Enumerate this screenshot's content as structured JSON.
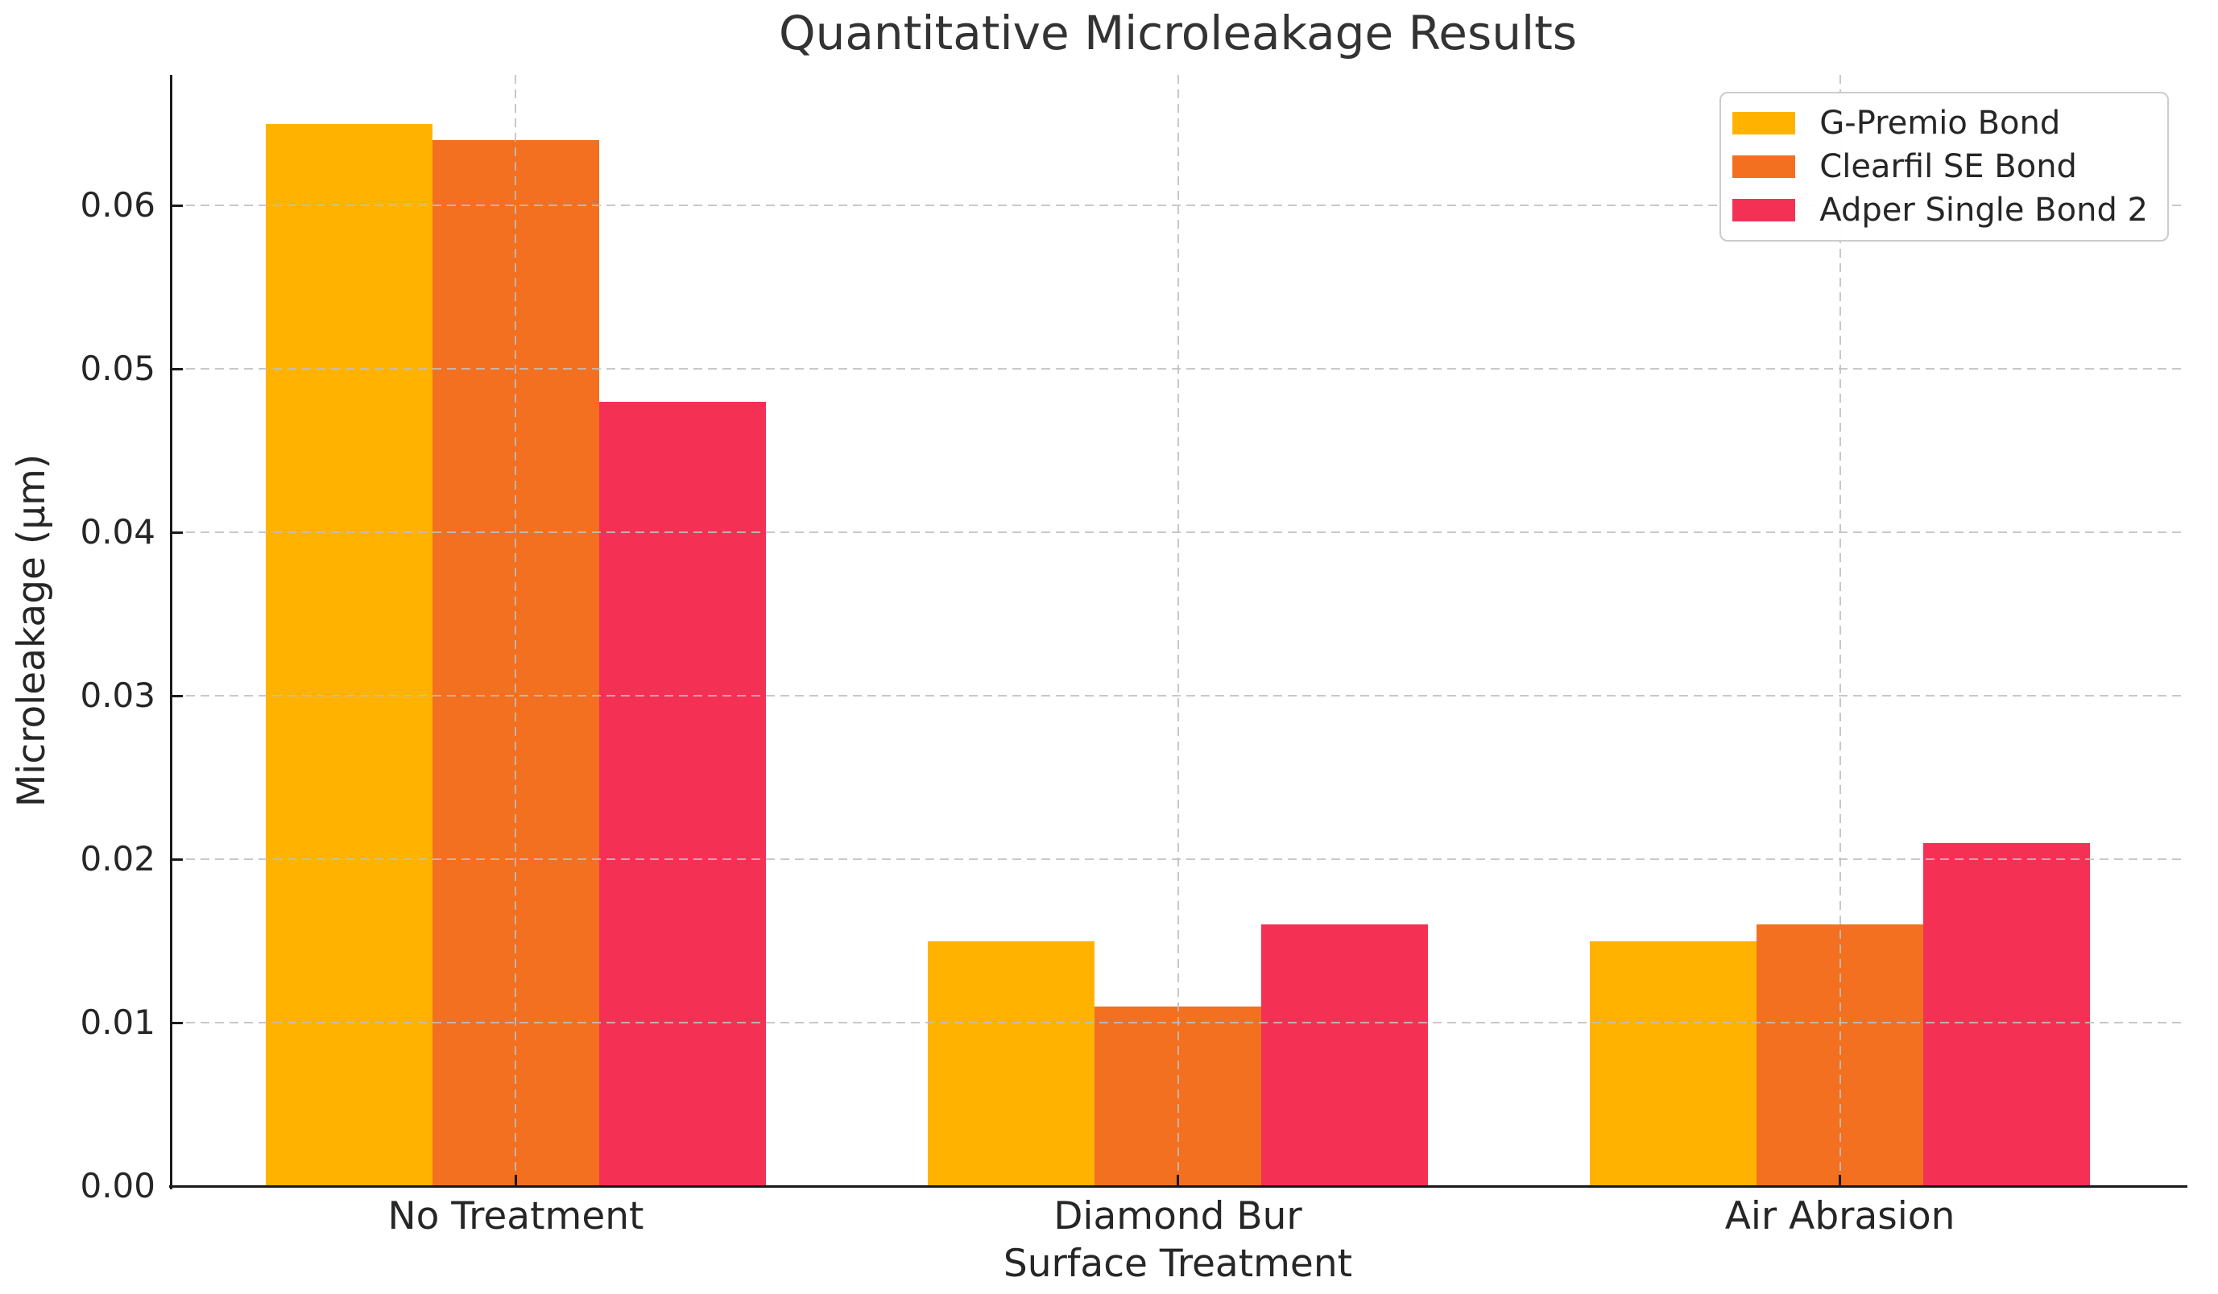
{
  "chart_data": {
    "type": "bar",
    "title": "Quantitative Microleakage Results",
    "xlabel": "Surface Treatment",
    "ylabel": "Microleakage (μm)",
    "categories": [
      "No Treatment",
      "Diamond Bur",
      "Air Abrasion"
    ],
    "series": [
      {
        "name": "G-Premio Bond",
        "color": "#FFB300",
        "values": [
          0.065,
          0.015,
          0.015
        ]
      },
      {
        "name": "Clearfil SE Bond",
        "color": "#F2701F",
        "values": [
          0.064,
          0.011,
          0.016
        ]
      },
      {
        "name": "Adper Single Bond 2",
        "color": "#F43155",
        "values": [
          0.048,
          0.016,
          0.021
        ]
      }
    ],
    "ylim": [
      0,
      0.068
    ],
    "yticks": [
      0.0,
      0.01,
      0.02,
      0.03,
      0.04,
      0.05,
      0.06
    ],
    "ytick_labels": [
      "0.00",
      "0.01",
      "0.02",
      "0.03",
      "0.04",
      "0.05",
      "0.06"
    ],
    "legend_position": "upper right",
    "grid": "dashed horizontal and vertical gridlines, drawn above bars",
    "background_color": "#ffffff",
    "text_color": "#262626",
    "spine_color": "#1a1a1a",
    "gridline_color": "#bfbfbf"
  }
}
